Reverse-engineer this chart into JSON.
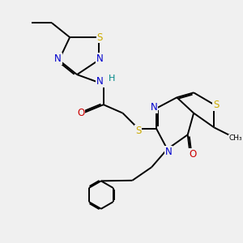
{
  "bg_color": "#f0f0f0",
  "atom_colors": {
    "C": "#000000",
    "N": "#0000cc",
    "O": "#cc0000",
    "S": "#ccaa00",
    "H": "#008888"
  },
  "bond_color": "#000000",
  "bond_width": 1.4,
  "dbo": 0.06,
  "fs": 8.5
}
